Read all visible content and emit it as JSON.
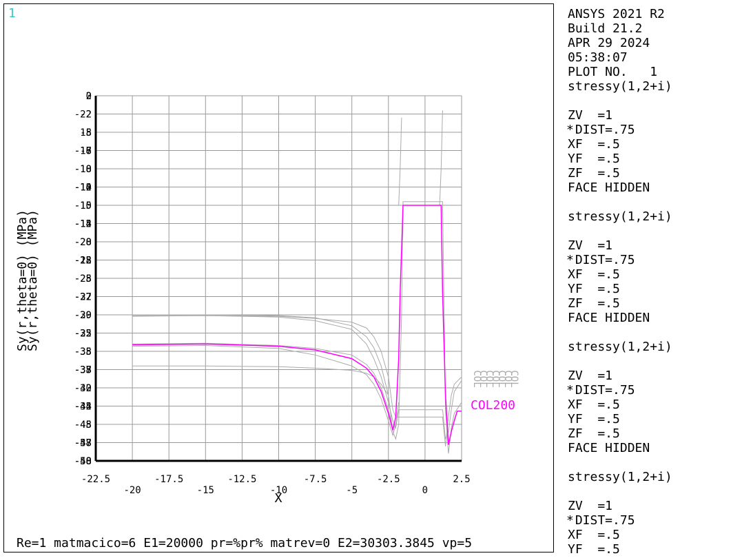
{
  "window_number": "1",
  "caption": "Re=1 matmacico=6 E1=20000 pr=%pr% matrev=0 E2=30303.3845 vp=5",
  "legend": {
    "header": [
      "ANSYS 2021 R2",
      "Build 21.2",
      "APR 29 2024",
      "05:38:07",
      "PLOT NO.   1",
      "stressy(1,2+i)"
    ],
    "blocks": [
      {
        "lines": [
          " ZV  =1",
          "*DIST=.75",
          " XF  =.5",
          " YF  =.5",
          " ZF  =.5",
          " FACE HIDDEN"
        ]
      },
      {
        "title": "stressy(1,2+i)",
        "lines": [
          " ZV  =1",
          "*DIST=.75",
          " XF  =.5",
          " YF  =.5",
          " ZF  =.5",
          " FACE HIDDEN"
        ]
      },
      {
        "title": "stressy(1,2+i)",
        "lines": [
          " ZV  =1",
          "*DIST=.75",
          " XF  =.5",
          " YF  =.5",
          " ZF  =.5",
          " FACE HIDDEN"
        ]
      },
      {
        "title": "stressy(1,2+i)",
        "lines": [
          " ZV  =1",
          "*DIST=.75",
          " XF  =.5",
          " YF  =.5"
        ]
      }
    ]
  },
  "chart_data": {
    "type": "line",
    "xlabel": "X",
    "ylabel": [
      "Sy(r,theta=0) (MPa)",
      "Sy(r,theta=0) (MPa)"
    ],
    "xlim": [
      -22.5,
      2.5
    ],
    "ylim": [
      -50,
      0
    ],
    "grid": true,
    "colors": {
      "axis": "#000000",
      "grid": "#999999",
      "series_gray": "#aaaaaa",
      "highlight": "#ff00ff"
    },
    "x_ticks_upper": [
      "-22.5",
      "-17.5",
      "-12.5",
      "-7.5",
      "-2.5",
      "2.5"
    ],
    "x_ticks_lower": [
      "-20",
      "-15",
      "-10",
      "-5",
      "0"
    ],
    "y_tick_labels": [
      [
        "0",
        "2"
      ],
      [
        "-2",
        "-22"
      ],
      [
        "-5",
        "18"
      ],
      [
        "-7",
        "-16",
        "-18"
      ],
      [
        "-10",
        "-18"
      ],
      [
        "-12",
        "-14",
        "-10"
      ],
      [
        "-15",
        "-10"
      ],
      [
        "-12",
        "-14",
        "-15"
      ],
      [
        "-20",
        "-28"
      ],
      [
        "-22",
        "-25",
        "-18"
      ],
      [
        "-25",
        "-28"
      ],
      [
        "-27",
        "-32",
        "-22"
      ],
      [
        "-30",
        "-29"
      ],
      [
        "-32",
        "-35",
        "-25"
      ],
      [
        "-35",
        "-38"
      ],
      [
        "-37",
        "-38",
        "-35"
      ],
      [
        "-40",
        "-32"
      ],
      [
        "-42",
        "-45",
        "-34"
      ],
      [
        "-45",
        "-48"
      ],
      [
        "-47",
        "-58",
        "-38"
      ],
      [
        "-50",
        "-48",
        "-58"
      ]
    ],
    "series_label": "COL200",
    "gray_labels": [
      "COL",
      "COL",
      "COL",
      "COL",
      "COL",
      "COL",
      "COL"
    ],
    "series": [
      {
        "name": "COL200",
        "highlight": true,
        "x": [
          -20,
          -15,
          -10,
          -7.5,
          -5,
          -4,
          -3.5,
          -3,
          -2.5,
          -2.2,
          -2,
          -1.8,
          -1.7,
          -1.5,
          -1.3,
          -1.2,
          0,
          1.1,
          1.2,
          1.4,
          1.6,
          1.8,
          2,
          2.2,
          2.5
        ],
        "y": [
          -34.1,
          -34,
          -34.3,
          -34.8,
          -36,
          -37.3,
          -38.5,
          -40.5,
          -43.5,
          -45.8,
          -44,
          -36,
          -27,
          -15,
          -15,
          -15,
          -15,
          -15,
          -27,
          -41,
          -47.8,
          -46,
          -44.5,
          -43.2,
          -43.2
        ]
      },
      {
        "name": "",
        "x": [
          -20,
          -15,
          -10,
          -7.5,
          -5,
          -4,
          -3.5,
          -3,
          -2.5,
          -2.2,
          -2,
          -1.8,
          -1.6,
          -1.5,
          -1.3,
          0,
          1.2,
          1.4,
          1.6,
          1.8,
          2,
          2.5
        ],
        "y": [
          -30,
          -30,
          -30.1,
          -30.4,
          -31.5,
          -33,
          -34.5,
          -37,
          -41,
          -46,
          -47,
          -45,
          -30,
          -14.5,
          -14.5,
          -14.5,
          -14.5,
          -43,
          -49,
          -45.5,
          -43.5,
          -42
        ]
      },
      {
        "name": "",
        "x": [
          -20,
          -15,
          -10,
          -7.5,
          -5,
          -4,
          -3.5,
          -3,
          -2.5,
          -2.2,
          -2,
          -1.8,
          0,
          1.2,
          1.4,
          1.6,
          1.8,
          2,
          2.5
        ],
        "y": [
          -30.2,
          -30.1,
          -30.3,
          -30.8,
          -32,
          -34,
          -36,
          -38.5,
          -42,
          -44.5,
          -45.5,
          -43,
          -43,
          -43,
          -47,
          -46,
          -43,
          -40.5,
          -39
        ]
      },
      {
        "name": "",
        "x": [
          -20,
          -15,
          -10,
          -7.5,
          -5,
          -4,
          -3.5,
          -3,
          -2.5,
          -2.2,
          -2,
          1.2,
          1.4,
          1.6,
          1.8,
          2,
          2.5
        ],
        "y": [
          -30.1,
          -30.1,
          -30.2,
          -30.5,
          -31,
          -31.8,
          -33,
          -35,
          -38.5,
          -43,
          -44,
          -44,
          -48,
          -44,
          -41,
          -39.5,
          -38.5
        ]
      },
      {
        "name": "",
        "x": [
          -20,
          -15,
          -10,
          -7.5,
          -5,
          -4,
          -3.5,
          -3,
          -2.5,
          -2.2,
          -2,
          -1.8
        ],
        "y": [
          -34.3,
          -34.2,
          -34.6,
          -35.5,
          -37,
          -38.2,
          -39.5,
          -41.5,
          -44.5,
          -46.5,
          -45,
          -42
        ]
      },
      {
        "name": "",
        "x": [
          -20,
          -15,
          -10,
          -7.5,
          -5,
          -4,
          -3.5,
          -3,
          -2.5,
          -2.2,
          -2
        ],
        "y": [
          -34,
          -33.9,
          -34.2,
          -34.6,
          -35.5,
          -36.8,
          -38,
          -40,
          -43,
          -45.5,
          -45.2
        ]
      },
      {
        "name": "",
        "x": [
          -20,
          -15,
          -10,
          -7.5,
          -5,
          -4,
          -3.5,
          -3,
          -2.5
        ],
        "y": [
          -37,
          -37,
          -37.1,
          -37.3,
          -37.6,
          -38,
          -38.5,
          -39.5,
          -41
        ]
      },
      {
        "name": "",
        "x": [
          -1.8,
          -1.7,
          -1.6
        ],
        "y": [
          -15,
          -10,
          -3
        ]
      },
      {
        "name": "",
        "x": [
          1.0,
          1.1,
          1.2
        ],
        "y": [
          -15,
          -10,
          -2
        ]
      }
    ]
  }
}
